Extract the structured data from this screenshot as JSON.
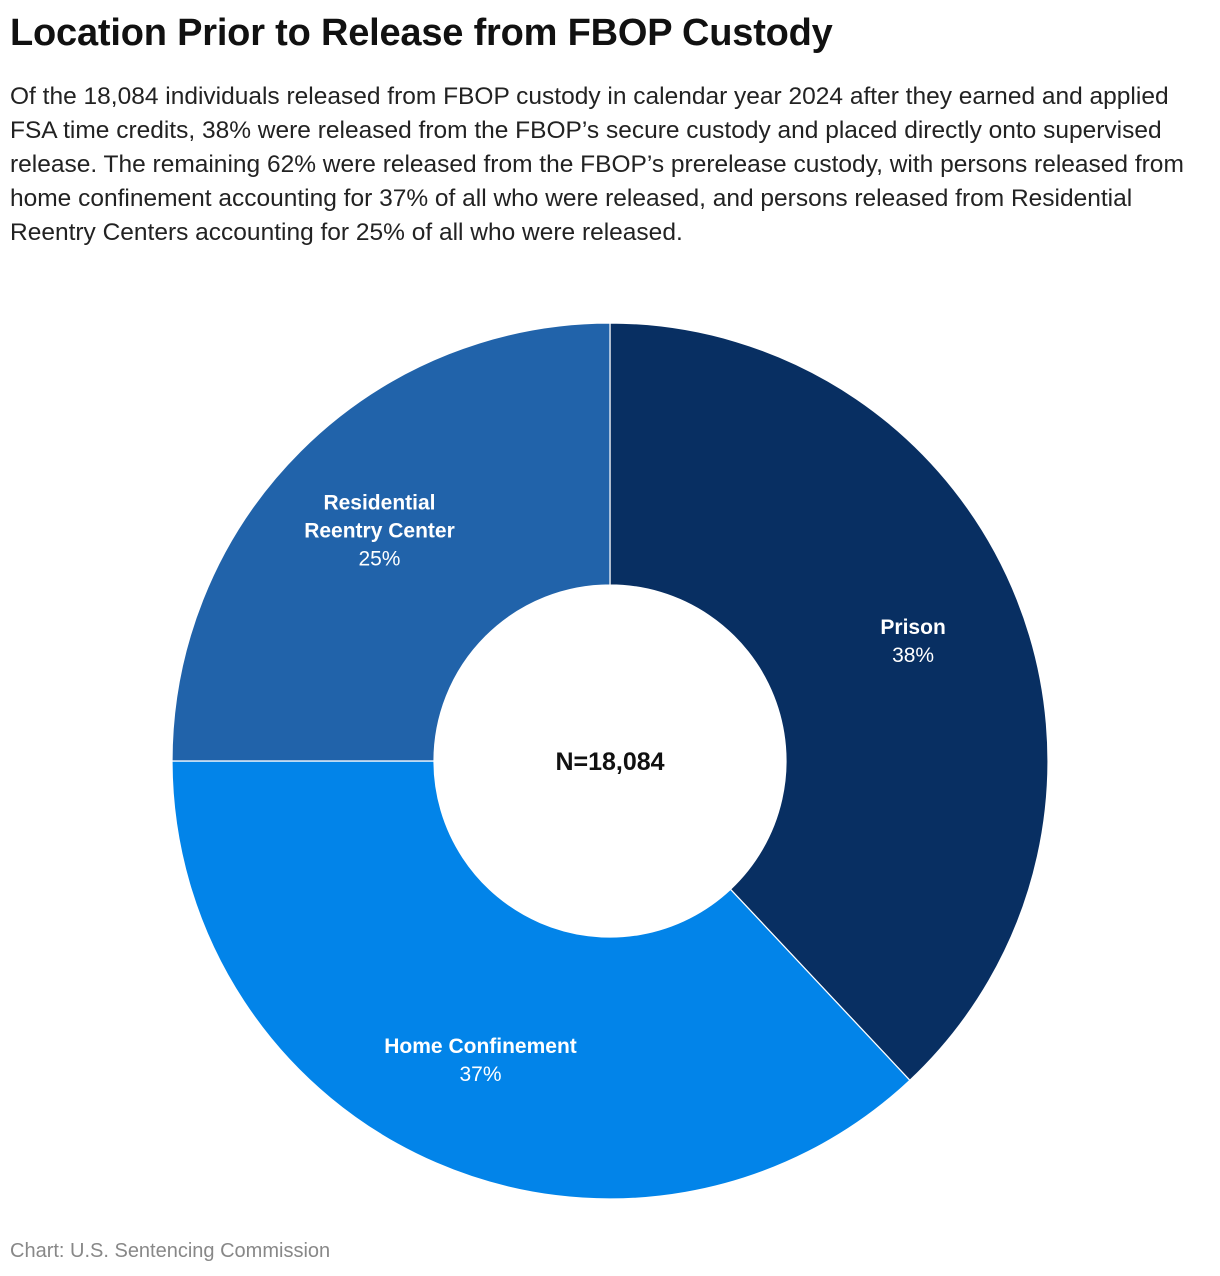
{
  "header": {
    "title": "Location Prior to Release from FBOP Custody",
    "subtitle": "Of the 18,084 individuals released from FBOP custody in calendar year 2024 after they earned and applied FSA time credits, 38% were released from the FBOP’s secure custody and placed directly onto supervised release. The remaining 62% were released from the FBOP’s prerelease custody, with persons released from home confinement accounting for 37% of all who were released, and persons released from Residential Reentry Centers accounting for 25% of all who were released."
  },
  "chart_data": {
    "type": "pie",
    "donut": true,
    "center_label": "N=18,084",
    "slices": [
      {
        "label": [
          "Prison"
        ],
        "value": 38,
        "value_label": "38%",
        "color": "#082f62"
      },
      {
        "label": [
          "Home Confinement"
        ],
        "value": 37,
        "value_label": "37%",
        "color": "#0284e9"
      },
      {
        "label": [
          "Residential",
          "Reentry Center"
        ],
        "value": 25,
        "value_label": "25%",
        "color": "#2163aa"
      }
    ],
    "start": "top",
    "direction": "clockwise"
  },
  "footer": {
    "source": "Chart: U.S. Sentencing Commission"
  }
}
